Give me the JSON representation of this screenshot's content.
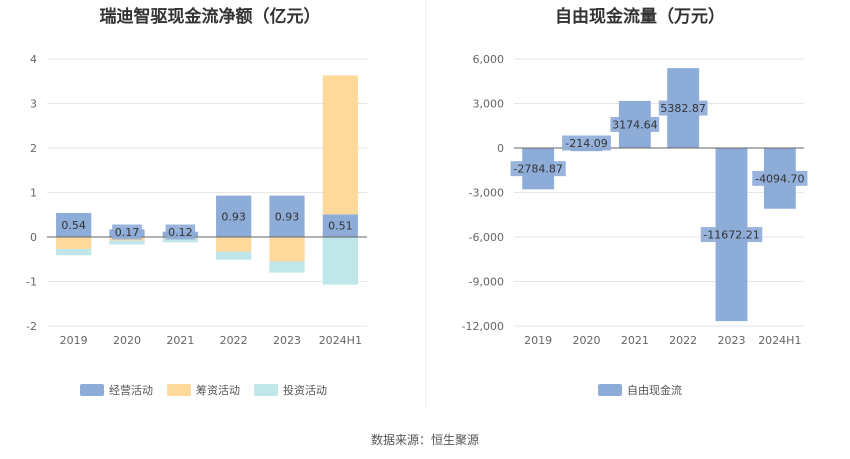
{
  "chart_data": [
    {
      "type": "bar",
      "stacked": true,
      "title": "瑞迪智驱现金流净额（亿元）",
      "categories": [
        "2019",
        "2020",
        "2021",
        "2022",
        "2023",
        "2024H1"
      ],
      "series": [
        {
          "name": "经营活动",
          "color": "#8eacd8",
          "values": [
            0.54,
            0.17,
            0.12,
            0.93,
            0.93,
            0.51
          ],
          "labels": [
            "0.54",
            "0.17",
            "0.12",
            "0.93",
            "0.93",
            "0.51"
          ]
        },
        {
          "name": "筹资活动",
          "color": "#fdd99b",
          "values": [
            -0.27,
            -0.08,
            -0.03,
            -0.33,
            -0.55,
            3.12
          ]
        },
        {
          "name": "投资活动",
          "color": "#bfe6e8",
          "values": [
            -0.14,
            -0.09,
            -0.09,
            -0.18,
            -0.25,
            -1.07
          ]
        }
      ],
      "yticks": [
        "4",
        "3",
        "2",
        "1",
        "0",
        "-1",
        "-2"
      ],
      "ylim": [
        -2,
        4
      ],
      "legend": "bottom"
    },
    {
      "type": "bar",
      "title": "自由现金流量（万元）",
      "categories": [
        "2019",
        "2020",
        "2021",
        "2022",
        "2023",
        "2024H1"
      ],
      "series": [
        {
          "name": "自由现金流",
          "color": "#8eacd8",
          "values": [
            -2784.87,
            -214.09,
            3174.64,
            5382.87,
            -11672.21,
            -4094.7
          ],
          "labels": [
            "-2784.87",
            "-214.09",
            "3174.64",
            "5382.87",
            "-11672.21",
            "-4094.70"
          ]
        }
      ],
      "yticks": [
        "6,000",
        "3,000",
        "0",
        "-3,000",
        "-6,000",
        "-9,000",
        "-12,000"
      ],
      "ylim": [
        -12000,
        6000
      ],
      "legend": "bottom"
    }
  ],
  "source": "数据来源：恒生聚源"
}
